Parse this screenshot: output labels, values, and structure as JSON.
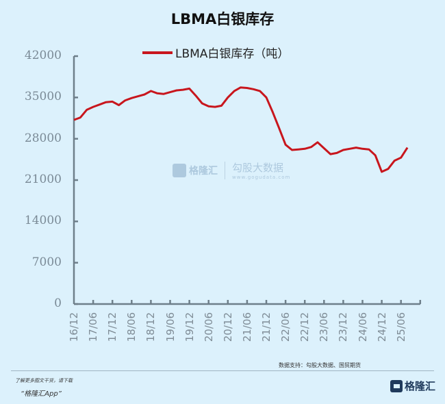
{
  "chart_data": {
    "type": "line",
    "title": "LBMA白银库存",
    "xlabel": "",
    "ylabel": "",
    "ylim": [
      0,
      42000
    ],
    "yticks": [
      0,
      7000,
      14000,
      21000,
      28000,
      35000,
      42000
    ],
    "x_tick_labels": [
      "16/12",
      "17/06",
      "17/12",
      "18/06",
      "18/12",
      "19/06",
      "19/12",
      "20/06",
      "20/12",
      "21/06",
      "21/12",
      "22/06",
      "22/12",
      "23/06",
      "23/12",
      "24/06",
      "24/12",
      "25/06"
    ],
    "legend_position": "top",
    "grid": false,
    "series": [
      {
        "name": "LBMA白银库存（吨）",
        "color": "#c8161d",
        "x": [
          "16/12",
          "17/02",
          "17/04",
          "17/06",
          "17/08",
          "17/10",
          "17/12",
          "18/02",
          "18/04",
          "18/06",
          "18/08",
          "18/10",
          "18/12",
          "19/02",
          "19/04",
          "19/06",
          "19/08",
          "19/10",
          "19/12",
          "20/02",
          "20/04",
          "20/06",
          "20/08",
          "20/10",
          "20/12",
          "21/02",
          "21/04",
          "21/06",
          "21/08",
          "21/10",
          "21/12",
          "22/02",
          "22/04",
          "22/06",
          "22/08",
          "22/10",
          "22/12",
          "23/02",
          "23/04",
          "23/06",
          "23/08",
          "23/10",
          "23/12",
          "24/02",
          "24/04",
          "24/06",
          "24/08",
          "24/10",
          "24/12",
          "25/02",
          "25/04",
          "25/06",
          "25/08"
        ],
        "values": [
          31200,
          31600,
          32900,
          33400,
          33800,
          34200,
          34300,
          33700,
          34500,
          34900,
          35200,
          35500,
          36100,
          35700,
          35600,
          35900,
          36200,
          36300,
          36500,
          35300,
          34000,
          33500,
          33400,
          33600,
          35000,
          36100,
          36700,
          36600,
          36400,
          36100,
          35000,
          32500,
          29800,
          27000,
          26100,
          26200,
          26300,
          26600,
          27400,
          26400,
          25400,
          25600,
          26100,
          26300,
          26500,
          26300,
          26200,
          25200,
          22400,
          22900,
          24300,
          24800,
          26500
        ]
      }
    ]
  },
  "header": {
    "title": "LBMA白银库存"
  },
  "legend": {
    "label": "LBMA白银库存（吨）"
  },
  "watermark": {
    "brand": "格隆汇",
    "partner": "勾股大数据",
    "url": "www.gogudata.com"
  },
  "footer": {
    "source": "数据支持：勾股大数据、国贸期货",
    "note": "了解更多图文干货，请下载",
    "app": "“格隆汇App”",
    "brand": "格隆汇"
  }
}
